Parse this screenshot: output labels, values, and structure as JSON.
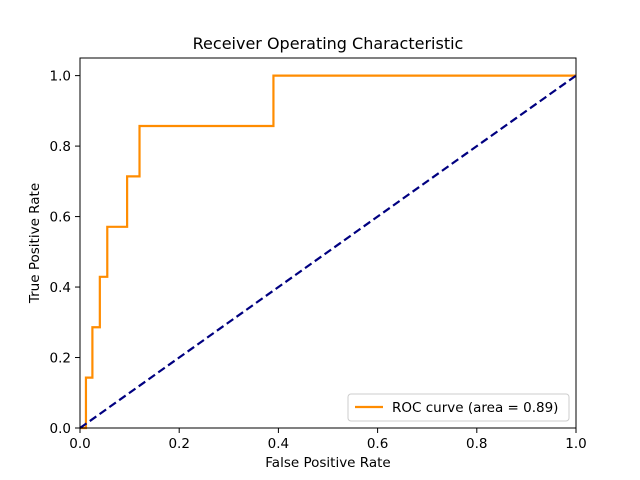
{
  "chart_data": {
    "type": "line",
    "title": "Receiver Operating Characteristic",
    "xlabel": "False Positive Rate",
    "ylabel": "True Positive Rate",
    "xlim": [
      0.0,
      1.0
    ],
    "ylim": [
      0.0,
      1.05
    ],
    "x_ticks": [
      "0.0",
      "0.2",
      "0.4",
      "0.6",
      "0.8",
      "1.0"
    ],
    "y_ticks": [
      "0.0",
      "0.2",
      "0.4",
      "0.6",
      "0.8",
      "1.0"
    ],
    "grid": false,
    "legend_position": "lower-right",
    "series": [
      {
        "name": "ROC curve (area = 0.89)",
        "color": "#ff8c00",
        "style": "solid",
        "x": [
          0.0,
          0.012,
          0.012,
          0.025,
          0.025,
          0.04,
          0.04,
          0.055,
          0.055,
          0.095,
          0.095,
          0.12,
          0.12,
          0.39,
          0.39,
          1.0
        ],
        "y": [
          0.0,
          0.0,
          0.143,
          0.143,
          0.286,
          0.286,
          0.429,
          0.429,
          0.571,
          0.571,
          0.714,
          0.714,
          0.857,
          0.857,
          1.0,
          1.0
        ]
      },
      {
        "color": "#000080",
        "style": "dashed",
        "x": [
          0.0,
          1.0
        ],
        "y": [
          0.0,
          1.0
        ]
      }
    ]
  }
}
